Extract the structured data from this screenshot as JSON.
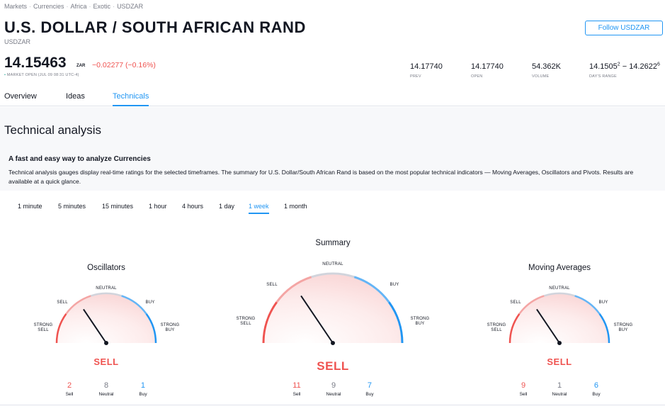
{
  "breadcrumb": [
    "Markets",
    "Currencies",
    "Africa",
    "Exotic",
    "USDZAR"
  ],
  "header": {
    "title": "U.S. DOLLAR / SOUTH AFRICAN RAND",
    "symbol": "USDZAR",
    "follow_label": "Follow USDZAR"
  },
  "quote": {
    "price": "14.15463",
    "currency": "ZAR",
    "change": "−0.02277 (−0.16%)",
    "status_dot": "•",
    "status": "MARKET OPEN (JUL 09 08:31 UTC-4)",
    "change_color": "#ef5350"
  },
  "stats": [
    {
      "value": "14.17740",
      "label": "PREV"
    },
    {
      "value": "14.17740",
      "label": "OPEN"
    },
    {
      "value": "54.362K",
      "label": "VOLUME"
    },
    {
      "value_a": "14.1505",
      "sup_a": "2",
      "sep": " − ",
      "value_b": "14.2622",
      "sup_b": "6",
      "label": "DAY'S RANGE"
    }
  ],
  "tabs": [
    {
      "label": "Overview",
      "active": false
    },
    {
      "label": "Ideas",
      "active": false
    },
    {
      "label": "Technicals",
      "active": true
    }
  ],
  "section": {
    "title": "Technical analysis",
    "intro_heading": "A fast and easy way to analyze Currencies",
    "intro_text": "Technical analysis gauges display real-time ratings for the selected timeframes. The summary for U.S. Dollar/South African Rand is based on the most popular technical indicators — Moving Averages, Oscillators and Pivots. Results are available at a quick glance."
  },
  "timeframes": [
    {
      "label": "1 minute",
      "active": false
    },
    {
      "label": "5 minutes",
      "active": false
    },
    {
      "label": "15 minutes",
      "active": false
    },
    {
      "label": "1 hour",
      "active": false
    },
    {
      "label": "4 hours",
      "active": false
    },
    {
      "label": "1 day",
      "active": false
    },
    {
      "label": "1 week",
      "active": true
    },
    {
      "label": "1 month",
      "active": false
    }
  ],
  "gauge_labels": {
    "strong_sell_1": "STRONG",
    "strong_sell_2": "SELL",
    "sell": "SELL",
    "neutral": "NEUTRAL",
    "buy": "BUY",
    "strong_buy_1": "STRONG",
    "strong_buy_2": "BUY"
  },
  "gauges": {
    "oscillators": {
      "title": "Oscillators",
      "verdict": "SELL",
      "counts": {
        "sell": "2",
        "neutral": "8",
        "buy": "1"
      }
    },
    "summary": {
      "title": "Summary",
      "verdict": "SELL",
      "counts": {
        "sell": "11",
        "neutral": "9",
        "buy": "7"
      }
    },
    "moving_averages": {
      "title": "Moving Averages",
      "verdict": "SELL",
      "counts": {
        "sell": "9",
        "neutral": "1",
        "buy": "6"
      }
    }
  },
  "count_labels": {
    "sell": "Sell",
    "neutral": "Neutral",
    "buy": "Buy"
  },
  "colors": {
    "accent": "#2196f3",
    "sell": "#ef5350",
    "strong_sell": "#ef5350",
    "neutral": "#d1d4dc",
    "buy": "#64b5f6",
    "strong_buy": "#2196f3"
  }
}
